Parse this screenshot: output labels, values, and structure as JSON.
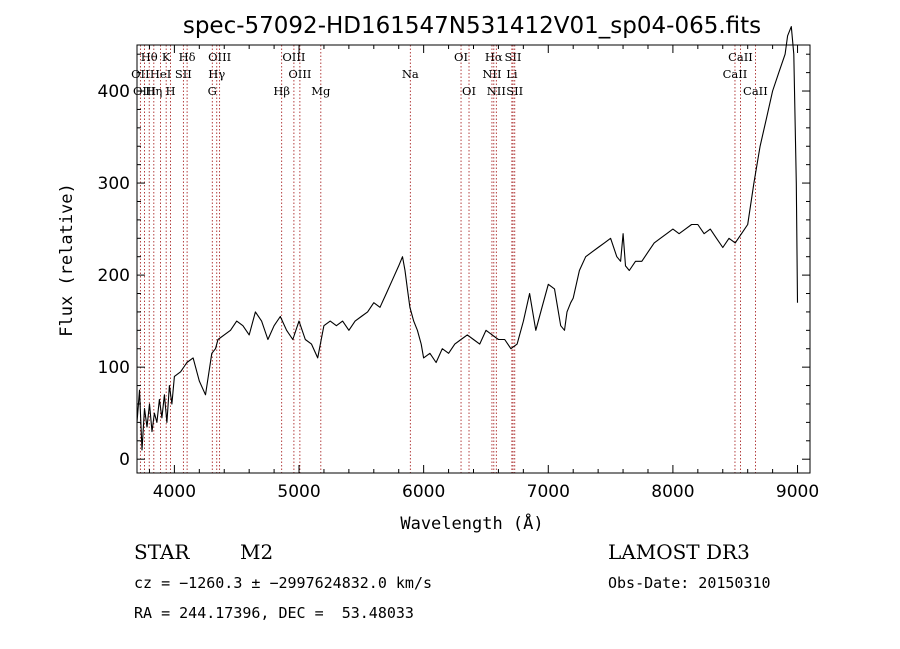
{
  "chart_data": {
    "type": "line",
    "title": "spec-57092-HD161547N531412V01_sp04-065.fits",
    "xlabel": "Wavelength (Å)",
    "ylabel": "Flux (relative)",
    "xlim": [
      3700,
      9100
    ],
    "ylim": [
      -15,
      450
    ],
    "xticks": [
      4000,
      5000,
      6000,
      7000,
      8000,
      9000
    ],
    "yticks": [
      0,
      100,
      200,
      300,
      400
    ],
    "grid": false,
    "series": [
      {
        "x": [
          3700,
          3720,
          3740,
          3760,
          3780,
          3800,
          3820,
          3840,
          3860,
          3880,
          3900,
          3920,
          3940,
          3960,
          3980,
          4000,
          4050,
          4100,
          4150,
          4200,
          4250,
          4300,
          4330,
          4350,
          4400,
          4450,
          4500,
          4550,
          4600,
          4650,
          4700,
          4750,
          4800,
          4850,
          4900,
          4950,
          5000,
          5050,
          5100,
          5150,
          5200,
          5250,
          5300,
          5350,
          5400,
          5450,
          5500,
          5550,
          5600,
          5650,
          5700,
          5750,
          5800,
          5830,
          5850,
          5870,
          5890,
          5920,
          5950,
          5980,
          6000,
          6050,
          6100,
          6150,
          6200,
          6250,
          6300,
          6350,
          6400,
          6450,
          6500,
          6550,
          6600,
          6650,
          6700,
          6750,
          6800,
          6850,
          6900,
          6950,
          7000,
          7050,
          7100,
          7130,
          7150,
          7180,
          7200,
          7250,
          7300,
          7350,
          7400,
          7450,
          7500,
          7550,
          7580,
          7600,
          7620,
          7650,
          7700,
          7750,
          7800,
          7850,
          7900,
          7950,
          8000,
          8050,
          8100,
          8150,
          8200,
          8250,
          8300,
          8350,
          8400,
          8450,
          8500,
          8550,
          8600,
          8650,
          8700,
          8750,
          8800,
          8850,
          8900,
          8920,
          8950,
          8970,
          8990,
          9000
        ],
        "y": [
          40,
          75,
          10,
          55,
          35,
          60,
          30,
          50,
          40,
          65,
          45,
          70,
          40,
          80,
          60,
          90,
          95,
          105,
          110,
          85,
          70,
          115,
          120,
          130,
          135,
          140,
          150,
          145,
          135,
          160,
          150,
          130,
          145,
          155,
          140,
          130,
          150,
          130,
          125,
          110,
          145,
          150,
          145,
          150,
          140,
          150,
          155,
          160,
          170,
          165,
          180,
          195,
          210,
          220,
          205,
          185,
          165,
          150,
          140,
          125,
          110,
          115,
          105,
          120,
          115,
          125,
          130,
          135,
          130,
          125,
          140,
          135,
          130,
          130,
          120,
          125,
          150,
          180,
          140,
          165,
          190,
          185,
          145,
          140,
          160,
          170,
          175,
          205,
          220,
          225,
          230,
          235,
          240,
          220,
          215,
          245,
          210,
          205,
          215,
          215,
          225,
          235,
          240,
          245,
          250,
          245,
          250,
          255,
          255,
          245,
          250,
          240,
          230,
          240,
          235,
          245,
          255,
          300,
          340,
          370,
          400,
          420,
          440,
          460,
          470,
          440,
          300,
          170
        ]
      }
    ],
    "spectral_lines": [
      {
        "label": "Hθ",
        "x": 3798,
        "row": 1
      },
      {
        "label": "OII",
        "x": 3727,
        "row": 2
      },
      {
        "label": "OIII",
        "x": 3760,
        "row": 3
      },
      {
        "label": "K",
        "x": 3934,
        "row": 1
      },
      {
        "label": "HeI",
        "x": 3889,
        "row": 2
      },
      {
        "label": "Hη",
        "x": 3835,
        "row": 3
      },
      {
        "label": "SII",
        "x": 4072,
        "row": 2
      },
      {
        "label": "H",
        "x": 3969,
        "row": 3
      },
      {
        "label": "Hδ",
        "x": 4102,
        "row": 1
      },
      {
        "label": "OIII",
        "x": 4363,
        "row": 1
      },
      {
        "label": "Hγ",
        "x": 4340,
        "row": 2
      },
      {
        "label": "G",
        "x": 4304,
        "row": 3
      },
      {
        "label": "OIII",
        "x": 4959,
        "row": 1
      },
      {
        "label": "OIII",
        "x": 5007,
        "row": 2
      },
      {
        "label": "Hβ",
        "x": 4861,
        "row": 3
      },
      {
        "label": "Mg",
        "x": 5175,
        "row": 3
      },
      {
        "label": "Na",
        "x": 5893,
        "row": 2
      },
      {
        "label": "OI",
        "x": 6300,
        "row": 1
      },
      {
        "label": "OI",
        "x": 6364,
        "row": 3
      },
      {
        "label": "Hα",
        "x": 6563,
        "row": 1
      },
      {
        "label": "NII",
        "x": 6548,
        "row": 2
      },
      {
        "label": "NII",
        "x": 6583,
        "row": 3
      },
      {
        "label": "SII",
        "x": 6717,
        "row": 1
      },
      {
        "label": "Li",
        "x": 6708,
        "row": 2
      },
      {
        "label": "SII",
        "x": 6731,
        "row": 3
      },
      {
        "label": "CaII",
        "x": 8542,
        "row": 1
      },
      {
        "label": "CaII",
        "x": 8498,
        "row": 2
      },
      {
        "label": "CaII",
        "x": 8662,
        "row": 3
      }
    ]
  },
  "info": {
    "object_class": "STAR",
    "subclass": "M2",
    "survey": "LAMOST DR3",
    "redshift": "cz = −1260.3 ± −2997624832.0 km/s",
    "obs_date": "Obs-Date: 20150310",
    "coords": "RA = 244.17396, DEC =  53.48033"
  },
  "colors": {
    "line": "#000000",
    "marker_lines": "#a01010"
  }
}
